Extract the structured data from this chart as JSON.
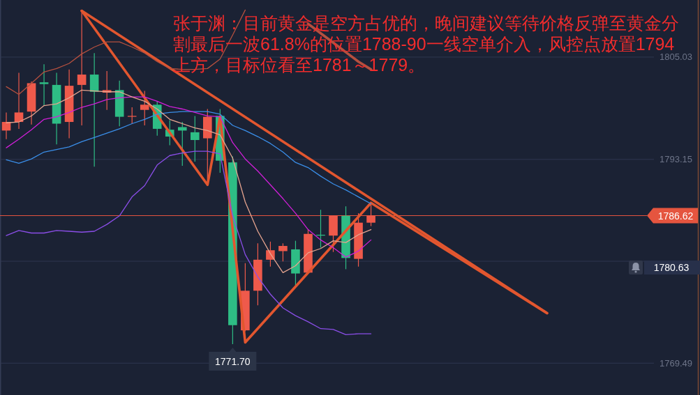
{
  "chart_data": {
    "type": "candlestick",
    "annotations": [
      "张于渊：目前黄金是空方占优的，晚间建议等待价格反弹至黄金分割最后一波61.8%的位置1788-90一线空单介入，风控点放置1794上方，目标位看至1781～1779。",
      {
        "text": "1771.70",
        "y": 1771.7
      },
      "1780.63"
    ],
    "categories": [
      null,
      null,
      null,
      null,
      null,
      null,
      null,
      null,
      null,
      null,
      null,
      null,
      null,
      null,
      null,
      null,
      null,
      null,
      null,
      null,
      null,
      null,
      null,
      null,
      null,
      null,
      null,
      null,
      null,
      null,
      null,
      null,
      null,
      null,
      null,
      null,
      null,
      null,
      null,
      null,
      null,
      null,
      null,
      null,
      null,
      null,
      null,
      null,
      null,
      null,
      null,
      null
    ],
    "ohlc": [
      [
        1796.5,
        1798.6,
        1795.5,
        1797.5
      ],
      [
        1797.5,
        1803.2,
        1796.7,
        1798.6
      ],
      [
        1798.7,
        1802.2,
        1797.2,
        1802.0
      ],
      [
        1802.1,
        1804.2,
        1799.4,
        1801.9
      ],
      [
        1801.8,
        1803.2,
        1794.9,
        1797.3
      ],
      [
        1797.5,
        1803.6,
        1795.6,
        1801.7
      ],
      [
        1801.8,
        1810.4,
        1797.1,
        1803.0
      ],
      [
        1803.0,
        1805.5,
        1792.3,
        1801.0
      ],
      [
        1800.9,
        1803.4,
        1798.9,
        1801.2
      ],
      [
        1801.2,
        1802.3,
        1797.0,
        1798.1
      ],
      [
        1798.1,
        1799.2,
        1797.3,
        1798.2
      ],
      [
        1798.9,
        1801.1,
        1797.1,
        1799.5
      ],
      [
        1799.5,
        1799.9,
        1795.9,
        1796.7
      ],
      [
        1796.6,
        1797.7,
        1794.8,
        1795.8
      ],
      [
        1796.9,
        1797.5,
        1792.4,
        1796.5
      ],
      [
        1796.3,
        1798.2,
        1792.9,
        1795.4
      ],
      [
        1795.6,
        1799.0,
        1790.5,
        1798.1
      ],
      [
        1798.2,
        1799.0,
        1791.6,
        1793.0
      ],
      [
        1792.8,
        1793.5,
        1771.7,
        1773.9
      ],
      [
        1773.3,
        1781.1,
        1773.2,
        1777.9
      ],
      [
        1777.9,
        1783.4,
        1776.2,
        1781.5
      ],
      [
        1781.5,
        1783.6,
        1780.7,
        1782.6
      ],
      [
        1782.5,
        1783.4,
        1781.3,
        1783.1
      ],
      [
        1782.7,
        1783.7,
        1778.4,
        1779.9
      ],
      [
        1780.0,
        1785.0,
        1779.9,
        1784.5
      ],
      [
        1784.4,
        1787.3,
        1782.9,
        1784.3
      ],
      [
        1784.3,
        1786.6,
        1782.4,
        1786.6
      ],
      [
        1786.6,
        1787.7,
        1780.4,
        1781.7
      ],
      [
        1781.6,
        1786.9,
        1780.7,
        1785.8
      ],
      [
        1785.8,
        1788.1,
        1785.4,
        1786.62
      ],
      null,
      null,
      null,
      null,
      null,
      null,
      null,
      null,
      null,
      null,
      null,
      null,
      null,
      null,
      null,
      null,
      null,
      null,
      null,
      null,
      null,
      null
    ],
    "colors": [
      "#ef5a4b",
      "#ef5a4b",
      "#ef5a4b",
      "#2ebd85",
      "#2ebd85",
      "#ef5a4b",
      "#ef5a4b",
      "#2ebd85",
      "#ef5a4b",
      "#2ebd85",
      "#ef5a4b",
      "#ef5a4b",
      "#2ebd85",
      "#2ebd85",
      "#2ebd85",
      "#2ebd85",
      "#ef5a4b",
      "#2ebd85",
      "#2ebd85",
      "#ef5a4b",
      "#ef5a4b",
      "#ef5a4b",
      "#ef5a4b",
      "#2ebd85",
      "#ef5a4b",
      "#2ebd85",
      "#ef5a4b",
      "#2ebd85",
      "#ef5a4b",
      "#ef5a4b",
      null,
      null,
      null,
      null,
      null,
      null,
      null,
      null,
      null,
      null,
      null,
      null,
      null,
      null,
      null,
      null,
      null,
      null,
      null,
      null,
      null,
      null
    ],
    "series": [
      {
        "type": "line",
        "color": "#b5503f",
        "values": [
          1801.6,
          1800.7,
          1802.0,
          1803.3,
          1803.7,
          1804.3,
          1805.4,
          1806.2,
          1806.8,
          1806.8,
          1806.2,
          1805.5,
          1804.5,
          1803.7,
          1803.6,
          1803.6,
          1803.7,
          1804.8,
          1807.6,
          1810.5,
          null,
          null,
          null,
          null,
          null,
          null,
          null,
          null,
          null,
          null,
          null,
          null,
          null,
          null,
          null,
          null,
          null,
          null,
          null,
          null,
          null,
          null,
          null,
          null,
          null,
          null,
          null,
          null,
          null,
          null,
          null,
          null
        ]
      },
      {
        "type": "line",
        "color": "#b5503f",
        "values": [
          null,
          null,
          null,
          null,
          null,
          null,
          null,
          null,
          null,
          null,
          null,
          null,
          null,
          null,
          null,
          null,
          null,
          null,
          null,
          null,
          null,
          null,
          null,
          null,
          1808.9,
          1807.8,
          1806.7,
          1805.6,
          1804.5,
          1803.6,
          null,
          null,
          null,
          null,
          null,
          null,
          null,
          null,
          null,
          null,
          null,
          null,
          null,
          null,
          null,
          null,
          null,
          null,
          null,
          null,
          null,
          null
        ]
      },
      {
        "type": "line",
        "color": "#3a8ee8",
        "values": [
          1793.1,
          1792.7,
          1793.2,
          1794.0,
          1794.3,
          1794.6,
          1795.2,
          1795.7,
          1796.2,
          1796.7,
          1797.3,
          1797.8,
          1798.4,
          1798.6,
          1798.7,
          1798.7,
          1798.7,
          1798.4,
          1797.1,
          1796.5,
          1795.8,
          1795.0,
          1794.0,
          1792.8,
          1792.2,
          1791.2,
          1790.3,
          1789.6,
          1788.8,
          1788.0,
          null,
          null,
          null,
          null,
          null,
          null,
          null,
          null,
          null,
          null,
          null,
          null,
          null,
          null,
          null,
          null,
          null,
          null,
          null,
          null,
          null,
          null
        ]
      },
      {
        "type": "line",
        "color": "#d01fd8",
        "values": [
          1794.5,
          1795.5,
          1796.6,
          1797.8,
          1798.1,
          1798.6,
          1799.2,
          1799.6,
          1800.1,
          1800.3,
          1800.4,
          1800.4,
          1799.9,
          1799.3,
          1799.0,
          1798.6,
          1798.2,
          1798.1,
          1795.1,
          1793.2,
          1791.8,
          1790.2,
          1788.6,
          1786.9,
          1785.0,
          1783.8,
          1782.9,
          1781.8,
          1782.5,
          1783.8,
          null,
          null,
          null,
          null,
          null,
          null,
          null,
          null,
          null,
          null,
          null,
          null,
          null,
          null,
          null,
          null,
          null,
          null,
          null,
          null,
          null,
          null
        ]
      },
      {
        "type": "line",
        "color": "#e6a48f",
        "values": [
          1797.4,
          1797.5,
          1798.2,
          1799.4,
          1799.6,
          1800.3,
          1801.2,
          1801.1,
          1801.0,
          1801.0,
          1800.4,
          1799.9,
          1799.0,
          1797.8,
          1797.3,
          1796.8,
          1796.5,
          1796.0,
          1793.3,
          1788.2,
          1784.8,
          1782.2,
          1780.0,
          1780.8,
          1782.3,
          1782.8,
          1783.7,
          1783.5,
          1784.4,
          1785.0,
          null,
          null,
          null,
          null,
          null,
          null,
          null,
          null,
          null,
          null,
          null,
          null,
          null,
          null,
          null,
          null,
          null,
          null,
          null,
          null,
          null,
          null
        ]
      },
      {
        "type": "line",
        "color": "#8b4ee8",
        "values": [
          1784.3,
          1784.9,
          1784.6,
          1784.6,
          1784.9,
          1784.8,
          1784.7,
          1784.8,
          1785.6,
          1786.6,
          1788.8,
          1790.1,
          1792.5,
          1793.6,
          1793.9,
          1794.1,
          1794.1,
          1793.8,
          1786.6,
          1782.1,
          1779.5,
          1777.5,
          1775.9,
          1775.0,
          1774.3,
          1773.5,
          1773.4,
          1772.8,
          1772.9,
          1772.9,
          null,
          null,
          null,
          null,
          null,
          null,
          null,
          null,
          null,
          null,
          null,
          null,
          null,
          null,
          null,
          null,
          null,
          null,
          null,
          null,
          null,
          null
        ]
      },
      {
        "type": "line",
        "color": "#e2562f",
        "values": [
          null,
          null,
          null,
          null,
          null,
          null,
          1810.4,
          null,
          null,
          null,
          null,
          null,
          null,
          null,
          null,
          null,
          1790.2,
          1798.1,
          null,
          1771.9,
          null,
          null,
          null,
          null,
          null,
          null,
          null,
          null,
          null,
          1788.1,
          null,
          null,
          null,
          null,
          null,
          null,
          null,
          null,
          null,
          null,
          null,
          null,
          null,
          1775.3,
          null,
          null,
          null,
          null,
          null,
          null,
          null,
          null
        ]
      },
      {
        "type": "line",
        "color": "#e2562f",
        "values": [
          null,
          null,
          null,
          null,
          null,
          null,
          1810.4,
          null,
          null,
          null,
          null,
          null,
          null,
          null,
          null,
          null,
          null,
          null,
          null,
          null,
          null,
          null,
          null,
          null,
          null,
          null,
          null,
          null,
          null,
          null,
          null,
          null,
          null,
          null,
          null,
          null,
          null,
          null,
          null,
          null,
          null,
          null,
          null,
          1775.3,
          null,
          null,
          null,
          null,
          null,
          null,
          null,
          null
        ]
      }
    ],
    "ylim": [
      1765.79,
      1811.66
    ],
    "yticks": [
      1769.49,
      {
        "value": 1781.32,
        "label": null
      },
      1793.15,
      1805.03
    ],
    "ref_lines": [
      {
        "axis": "y",
        "value": 1786.62,
        "label": "1786.62",
        "color": "#e5553f"
      }
    ],
    "grid": "y",
    "tick_labels": "y"
  }
}
